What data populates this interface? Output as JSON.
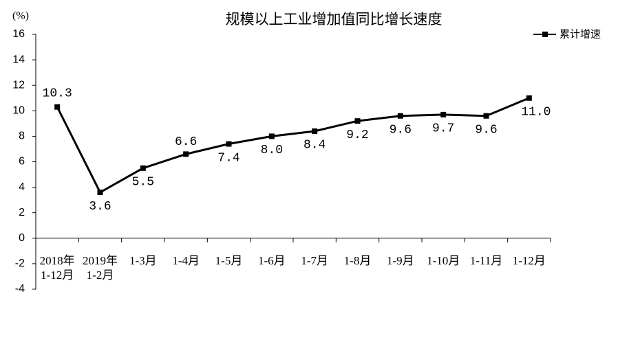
{
  "chart_data": {
    "type": "line",
    "title": "规模以上工业增加值同比增长速度",
    "y_label": "(%)",
    "categories": [
      "2018年1-12月",
      "2019年1-2月",
      "1-3月",
      "1-4月",
      "1-5月",
      "1-6月",
      "1-7月",
      "1-8月",
      "1-9月",
      "1-10月",
      "1-11月",
      "1-12月"
    ],
    "series": [
      {
        "name": "累计增速",
        "color": "#000000",
        "values": [
          10.3,
          3.6,
          5.5,
          6.6,
          7.4,
          8.0,
          8.4,
          9.2,
          9.6,
          9.7,
          9.6,
          11.0
        ],
        "value_labels": [
          "10.3",
          "3.6",
          "5.5",
          "6.6",
          "7.4",
          "8.0",
          "8.4",
          "9.2",
          "9.6",
          "9.7",
          "9.6",
          "11.0"
        ]
      }
    ],
    "ylim": [
      -4,
      16
    ],
    "yticks": [
      -4,
      -2,
      0,
      2,
      4,
      6,
      8,
      10,
      12,
      14,
      16
    ],
    "grid": false,
    "legend": "top-right"
  }
}
